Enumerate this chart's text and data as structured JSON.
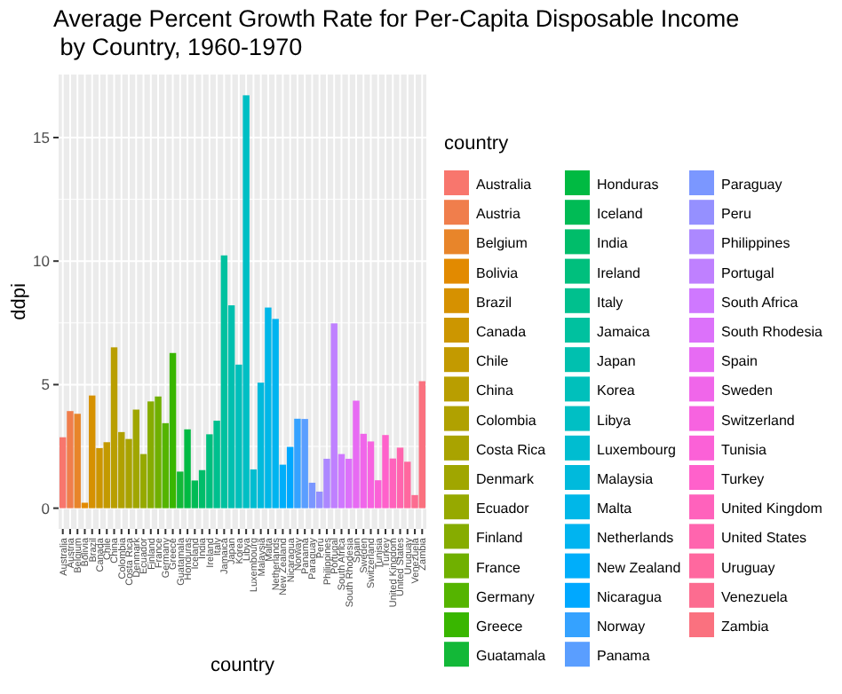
{
  "chart_data": {
    "type": "bar",
    "title": "Average Percent Growth Rate for Per-Capita Disposable Income\n by Country, 1960-1970",
    "xlabel": "country",
    "ylabel": "ddpi",
    "legend_title": "country",
    "legend": "right",
    "grid": true,
    "categories": [
      "Australia",
      "Austria",
      "Belgium",
      "Bolivia",
      "Brazil",
      "Canada",
      "Chile",
      "China",
      "Colombia",
      "Costa Rica",
      "Denmark",
      "Ecuador",
      "Finland",
      "France",
      "Germany",
      "Greece",
      "Guatamala",
      "Honduras",
      "Iceland",
      "India",
      "Ireland",
      "Italy",
      "Jamaica",
      "Japan",
      "Korea",
      "Libya",
      "Luxembourg",
      "Malaysia",
      "Malta",
      "Netherlands",
      "New Zealand",
      "Nicaragua",
      "Norway",
      "Panama",
      "Paraguay",
      "Peru",
      "Philippines",
      "Portugal",
      "South Africa",
      "South Rhodesia",
      "Spain",
      "Sweden",
      "Switzerland",
      "Tunisia",
      "Turkey",
      "United Kingdom",
      "United States",
      "Uruguay",
      "Venezuela",
      "Zambia"
    ],
    "series": [
      {
        "name": "Australia",
        "color": "#F8766D",
        "x": [
          "Australia"
        ],
        "values": [
          2.87
        ]
      },
      {
        "name": "Austria",
        "color": "#F07E4C",
        "x": [
          "Austria"
        ],
        "values": [
          3.93
        ]
      },
      {
        "name": "Belgium",
        "color": "#E8852A",
        "x": [
          "Belgium"
        ],
        "values": [
          3.82
        ]
      },
      {
        "name": "Bolivia",
        "color": "#E28A00",
        "x": [
          "Bolivia"
        ],
        "values": [
          0.22
        ]
      },
      {
        "name": "Brazil",
        "color": "#D69100",
        "x": [
          "Brazil"
        ],
        "values": [
          4.56
        ]
      },
      {
        "name": "Canada",
        "color": "#CC9600",
        "x": [
          "Canada"
        ],
        "values": [
          2.43
        ]
      },
      {
        "name": "Chile",
        "color": "#C39A00",
        "x": [
          "Chile"
        ],
        "values": [
          2.67
        ]
      },
      {
        "name": "China",
        "color": "#B99E00",
        "x": [
          "China"
        ],
        "values": [
          6.51
        ]
      },
      {
        "name": "Colombia",
        "color": "#B0A100",
        "x": [
          "Colombia"
        ],
        "values": [
          3.08
        ]
      },
      {
        "name": "Costa Rica",
        "color": "#A9A300",
        "x": [
          "Costa Rica"
        ],
        "values": [
          2.8
        ]
      },
      {
        "name": "Denmark",
        "color": "#A0A600",
        "x": [
          "Denmark"
        ],
        "values": [
          3.99
        ]
      },
      {
        "name": "Ecuador",
        "color": "#96A900",
        "x": [
          "Ecuador"
        ],
        "values": [
          2.19
        ]
      },
      {
        "name": "Finland",
        "color": "#86AC00",
        "x": [
          "Finland"
        ],
        "values": [
          4.32
        ]
      },
      {
        "name": "France",
        "color": "#70B000",
        "x": [
          "France"
        ],
        "values": [
          4.52
        ]
      },
      {
        "name": "Germany",
        "color": "#55B400",
        "x": [
          "Germany"
        ],
        "values": [
          3.44
        ]
      },
      {
        "name": "Greece",
        "color": "#39B600",
        "x": [
          "Greece"
        ],
        "values": [
          6.28
        ]
      },
      {
        "name": "Guatamala",
        "color": "#13B838",
        "x": [
          "Guatamala"
        ],
        "values": [
          1.48
        ]
      },
      {
        "name": "Honduras",
        "color": "#00BA42",
        "x": [
          "Honduras"
        ],
        "values": [
          3.19
        ]
      },
      {
        "name": "Iceland",
        "color": "#00BB55",
        "x": [
          "Iceland"
        ],
        "values": [
          1.12
        ]
      },
      {
        "name": "India",
        "color": "#00BD6A",
        "x": [
          "India"
        ],
        "values": [
          1.54
        ]
      },
      {
        "name": "Ireland",
        "color": "#00BF7D",
        "x": [
          "Ireland"
        ],
        "values": [
          2.99
        ]
      },
      {
        "name": "Italy",
        "color": "#00C08E",
        "x": [
          "Italy"
        ],
        "values": [
          3.54
        ]
      },
      {
        "name": "Jamaica",
        "color": "#00C19F",
        "x": [
          "Jamaica"
        ],
        "values": [
          10.23
        ]
      },
      {
        "name": "Japan",
        "color": "#00C0AF",
        "x": [
          "Japan"
        ],
        "values": [
          8.21
        ]
      },
      {
        "name": "Korea",
        "color": "#00C0BB",
        "x": [
          "Korea"
        ],
        "values": [
          5.81
        ]
      },
      {
        "name": "Libya",
        "color": "#00BFC4",
        "x": [
          "Libya"
        ],
        "values": [
          16.71
        ]
      },
      {
        "name": "Luxembourg",
        "color": "#00BDD0",
        "x": [
          "Luxembourg"
        ],
        "values": [
          1.57
        ]
      },
      {
        "name": "Malaysia",
        "color": "#00BADC",
        "x": [
          "Malaysia"
        ],
        "values": [
          5.08
        ]
      },
      {
        "name": "Malta",
        "color": "#00B7E8",
        "x": [
          "Malta"
        ],
        "values": [
          8.12
        ]
      },
      {
        "name": "Netherlands",
        "color": "#00B4F0",
        "x": [
          "Netherlands"
        ],
        "values": [
          7.66
        ]
      },
      {
        "name": "New Zealand",
        "color": "#00AEFA",
        "x": [
          "New Zealand"
        ],
        "values": [
          1.76
        ]
      },
      {
        "name": "Nicaragua",
        "color": "#00A8FF",
        "x": [
          "Nicaragua"
        ],
        "values": [
          2.48
        ]
      },
      {
        "name": "Norway",
        "color": "#35A2FF",
        "x": [
          "Norway"
        ],
        "values": [
          3.62
        ]
      },
      {
        "name": "Panama",
        "color": "#5A9EFF",
        "x": [
          "Panama"
        ],
        "values": [
          3.61
        ]
      },
      {
        "name": "Paraguay",
        "color": "#7B97FF",
        "x": [
          "Paraguay"
        ],
        "values": [
          1.03
        ]
      },
      {
        "name": "Peru",
        "color": "#9590FF",
        "x": [
          "Peru"
        ],
        "values": [
          0.67
        ]
      },
      {
        "name": "Philippines",
        "color": "#AC88FF",
        "x": [
          "Philippines"
        ],
        "values": [
          2.0
        ]
      },
      {
        "name": "Portugal",
        "color": "#BF80FF",
        "x": [
          "Portugal"
        ],
        "values": [
          7.48
        ]
      },
      {
        "name": "South Africa",
        "color": "#CF78FF",
        "x": [
          "South Africa"
        ],
        "values": [
          2.19
        ]
      },
      {
        "name": "South Rhodesia",
        "color": "#DC71FA",
        "x": [
          "South Rhodesia"
        ],
        "values": [
          2.0
        ]
      },
      {
        "name": "Spain",
        "color": "#E76BF3",
        "x": [
          "Spain"
        ],
        "values": [
          4.35
        ]
      },
      {
        "name": "Sweden",
        "color": "#F066EA",
        "x": [
          "Sweden"
        ],
        "values": [
          3.01
        ]
      },
      {
        "name": "Switzerland",
        "color": "#F763E0",
        "x": [
          "Switzerland"
        ],
        "values": [
          2.7
        ]
      },
      {
        "name": "Tunisia",
        "color": "#FB61D7",
        "x": [
          "Tunisia"
        ],
        "values": [
          1.13
        ]
      },
      {
        "name": "Turkey",
        "color": "#FF61CB",
        "x": [
          "Turkey"
        ],
        "values": [
          2.96
        ]
      },
      {
        "name": "United Kingdom",
        "color": "#FF62BC",
        "x": [
          "United Kingdom"
        ],
        "values": [
          2.01
        ]
      },
      {
        "name": "United States",
        "color": "#FF65AE",
        "x": [
          "United States"
        ],
        "values": [
          2.45
        ]
      },
      {
        "name": "Uruguay",
        "color": "#FF689F",
        "x": [
          "Uruguay"
        ],
        "values": [
          1.88
        ]
      },
      {
        "name": "Venezuela",
        "color": "#FC6C90",
        "x": [
          "Venezuela"
        ],
        "values": [
          0.53
        ]
      },
      {
        "name": "Zambia",
        "color": "#FA717F",
        "x": [
          "Zambia"
        ],
        "values": [
          5.14
        ]
      }
    ],
    "ylim": [
      -0.84,
      17.55
    ],
    "yticks": [
      0,
      5,
      10,
      15
    ]
  }
}
